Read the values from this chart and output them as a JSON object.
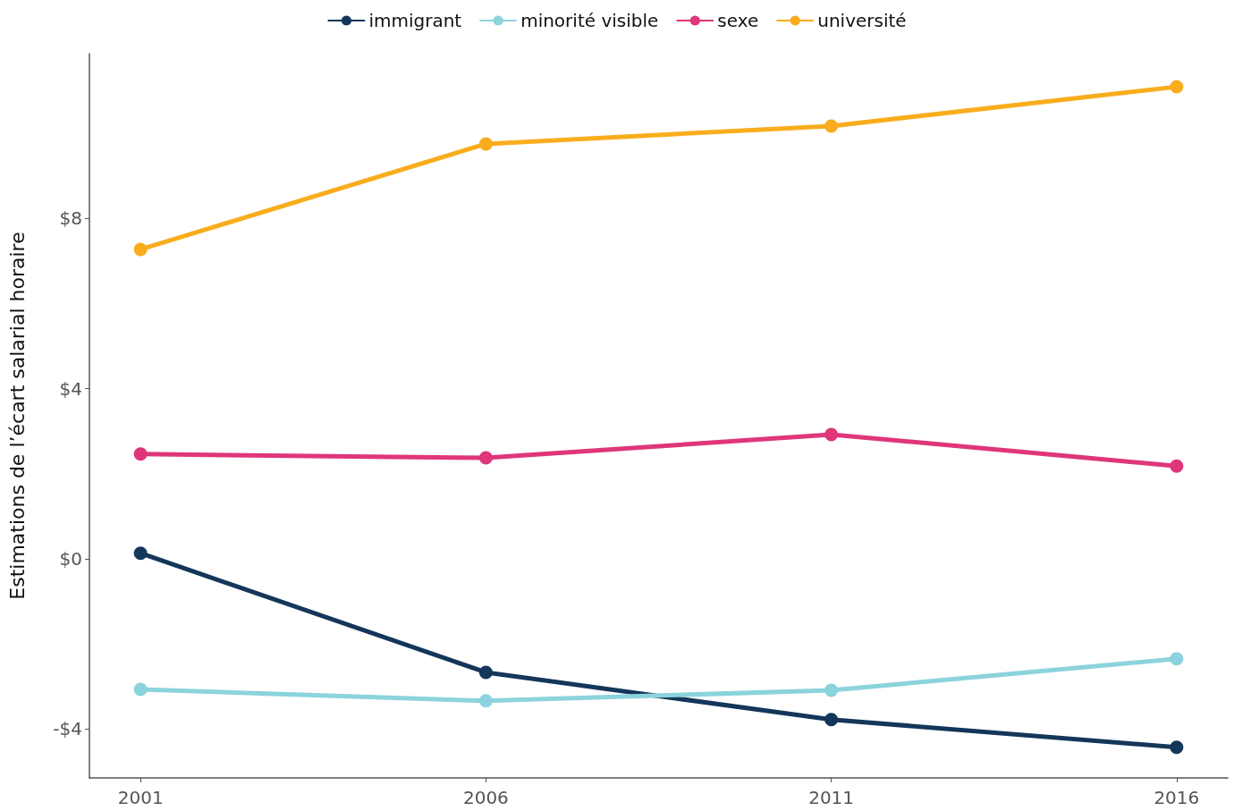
{
  "chart_data": {
    "type": "line",
    "ylabel": "Estimations de l’écart salarial horaire",
    "x": [
      2001,
      2006,
      2011,
      2016
    ],
    "series": [
      {
        "name": "immigrant",
        "color": "#14365a",
        "values": [
          0.13,
          -2.67,
          -3.78,
          -4.43
        ]
      },
      {
        "name": "minorité visible",
        "color": "#8bd3dd",
        "values": [
          -3.07,
          -3.34,
          -3.09,
          -2.35
        ]
      },
      {
        "name": "sexe",
        "color": "#df367a",
        "values": [
          2.46,
          2.37,
          2.92,
          2.18
        ]
      },
      {
        "name": "université",
        "color": "#f9ad1d",
        "values": [
          7.27,
          9.75,
          10.17,
          11.09
        ]
      }
    ],
    "xlim": [
      2000.26,
      2016.74
    ],
    "xticks": [
      2001,
      2006,
      2011,
      2016
    ],
    "ylim": [
      -5.15,
      11.87
    ],
    "yticks": [
      {
        "value": -4,
        "label": "-$4"
      },
      {
        "value": 0,
        "label": "$0"
      },
      {
        "value": 4,
        "label": "$4"
      },
      {
        "value": 8,
        "label": "$8"
      }
    ],
    "grid": false,
    "legend": "top",
    "marker": "circle",
    "line_style": "solid"
  }
}
